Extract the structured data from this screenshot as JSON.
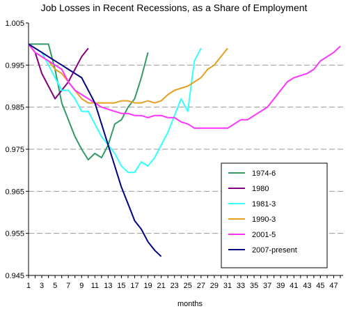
{
  "chart_data": {
    "type": "line",
    "title": "Job Losses in Recent Recessions, as a Share of Employment",
    "xlabel": "months",
    "ylabel": "",
    "ylim": [
      0.945,
      1.005
    ],
    "xlim": [
      1,
      48
    ],
    "yticks": [
      "1.005",
      "0.995",
      "0.985",
      "0.975",
      "0.965",
      "0.955",
      "0.945"
    ],
    "xticks": [
      1,
      3,
      5,
      7,
      9,
      11,
      13,
      15,
      17,
      19,
      21,
      23,
      25,
      27,
      29,
      31,
      33,
      35,
      37,
      39,
      41,
      43,
      45,
      47
    ],
    "grid": "horizontal dashed",
    "legend_position": "bottom-right",
    "series": [
      {
        "name": "1974-6",
        "color": "#339966",
        "x": [
          1,
          2,
          3,
          4,
          5,
          6,
          7,
          8,
          9,
          10,
          11,
          12,
          13,
          14,
          15,
          16,
          17,
          18,
          19
        ],
        "values": [
          1.0,
          1.0,
          1.0,
          1.0,
          0.994,
          0.986,
          0.982,
          0.978,
          0.975,
          0.9725,
          0.974,
          0.973,
          0.976,
          0.981,
          0.982,
          0.985,
          0.987,
          0.992,
          0.998
        ]
      },
      {
        "name": "1980",
        "color": "#800080",
        "x": [
          1,
          2,
          3,
          4,
          5,
          6,
          7,
          8,
          9,
          10
        ],
        "values": [
          1.0,
          0.998,
          0.993,
          0.99,
          0.987,
          0.989,
          0.991,
          0.994,
          0.997,
          0.999
        ]
      },
      {
        "name": "1981-3",
        "color": "#33FFFF",
        "x": [
          1,
          2,
          3,
          4,
          5,
          6,
          7,
          8,
          9,
          10,
          11,
          12,
          13,
          14,
          15,
          16,
          17,
          18,
          19,
          20,
          21,
          22,
          23,
          24,
          25,
          26,
          27
        ],
        "values": [
          1.0,
          0.999,
          0.998,
          0.995,
          0.992,
          0.989,
          0.989,
          0.987,
          0.984,
          0.984,
          0.981,
          0.978,
          0.976,
          0.974,
          0.971,
          0.9695,
          0.9695,
          0.972,
          0.971,
          0.973,
          0.976,
          0.979,
          0.983,
          0.987,
          0.984,
          0.996,
          0.999
        ]
      },
      {
        "name": "1990-3",
        "color": "#E6A020",
        "x": [
          1,
          2,
          3,
          4,
          5,
          6,
          7,
          8,
          9,
          10,
          11,
          12,
          13,
          14,
          15,
          16,
          17,
          18,
          19,
          20,
          21,
          22,
          23,
          24,
          25,
          26,
          27,
          28,
          29,
          30,
          31
        ],
        "values": [
          1.0,
          0.998,
          0.997,
          0.996,
          0.994,
          0.993,
          0.991,
          0.989,
          0.987,
          0.986,
          0.986,
          0.986,
          0.986,
          0.986,
          0.9865,
          0.9865,
          0.986,
          0.986,
          0.9865,
          0.986,
          0.9865,
          0.988,
          0.989,
          0.9895,
          0.99,
          0.991,
          0.992,
          0.994,
          0.995,
          0.997,
          0.999
        ]
      },
      {
        "name": "2001-5",
        "color": "#FF33FF",
        "x": [
          1,
          2,
          3,
          4,
          5,
          6,
          7,
          8,
          9,
          10,
          11,
          12,
          13,
          14,
          15,
          16,
          17,
          18,
          19,
          20,
          21,
          22,
          23,
          24,
          25,
          26,
          27,
          28,
          29,
          30,
          31,
          32,
          33,
          34,
          35,
          36,
          37,
          38,
          39,
          40,
          41,
          42,
          43,
          44,
          45,
          46,
          47,
          48
        ],
        "values": [
          1.0,
          0.998,
          0.997,
          0.996,
          0.995,
          0.994,
          0.991,
          0.989,
          0.988,
          0.987,
          0.986,
          0.985,
          0.9845,
          0.984,
          0.9835,
          0.9835,
          0.983,
          0.983,
          0.9825,
          0.983,
          0.983,
          0.9825,
          0.9825,
          0.9815,
          0.981,
          0.98,
          0.98,
          0.98,
          0.98,
          0.98,
          0.98,
          0.981,
          0.982,
          0.982,
          0.983,
          0.984,
          0.985,
          0.987,
          0.989,
          0.991,
          0.992,
          0.9925,
          0.993,
          0.994,
          0.996,
          0.997,
          0.998,
          0.9995
        ]
      },
      {
        "name": "2007-present",
        "color": "#000080",
        "x": [
          1,
          2,
          3,
          4,
          5,
          6,
          7,
          8,
          9,
          10,
          11,
          12,
          13,
          14,
          15,
          16,
          17,
          18,
          19,
          20,
          21
        ],
        "values": [
          1.0,
          0.999,
          0.998,
          0.997,
          0.996,
          0.995,
          0.994,
          0.993,
          0.992,
          0.989,
          0.986,
          0.981,
          0.976,
          0.971,
          0.966,
          0.962,
          0.958,
          0.956,
          0.953,
          0.951,
          0.9495
        ]
      }
    ]
  }
}
